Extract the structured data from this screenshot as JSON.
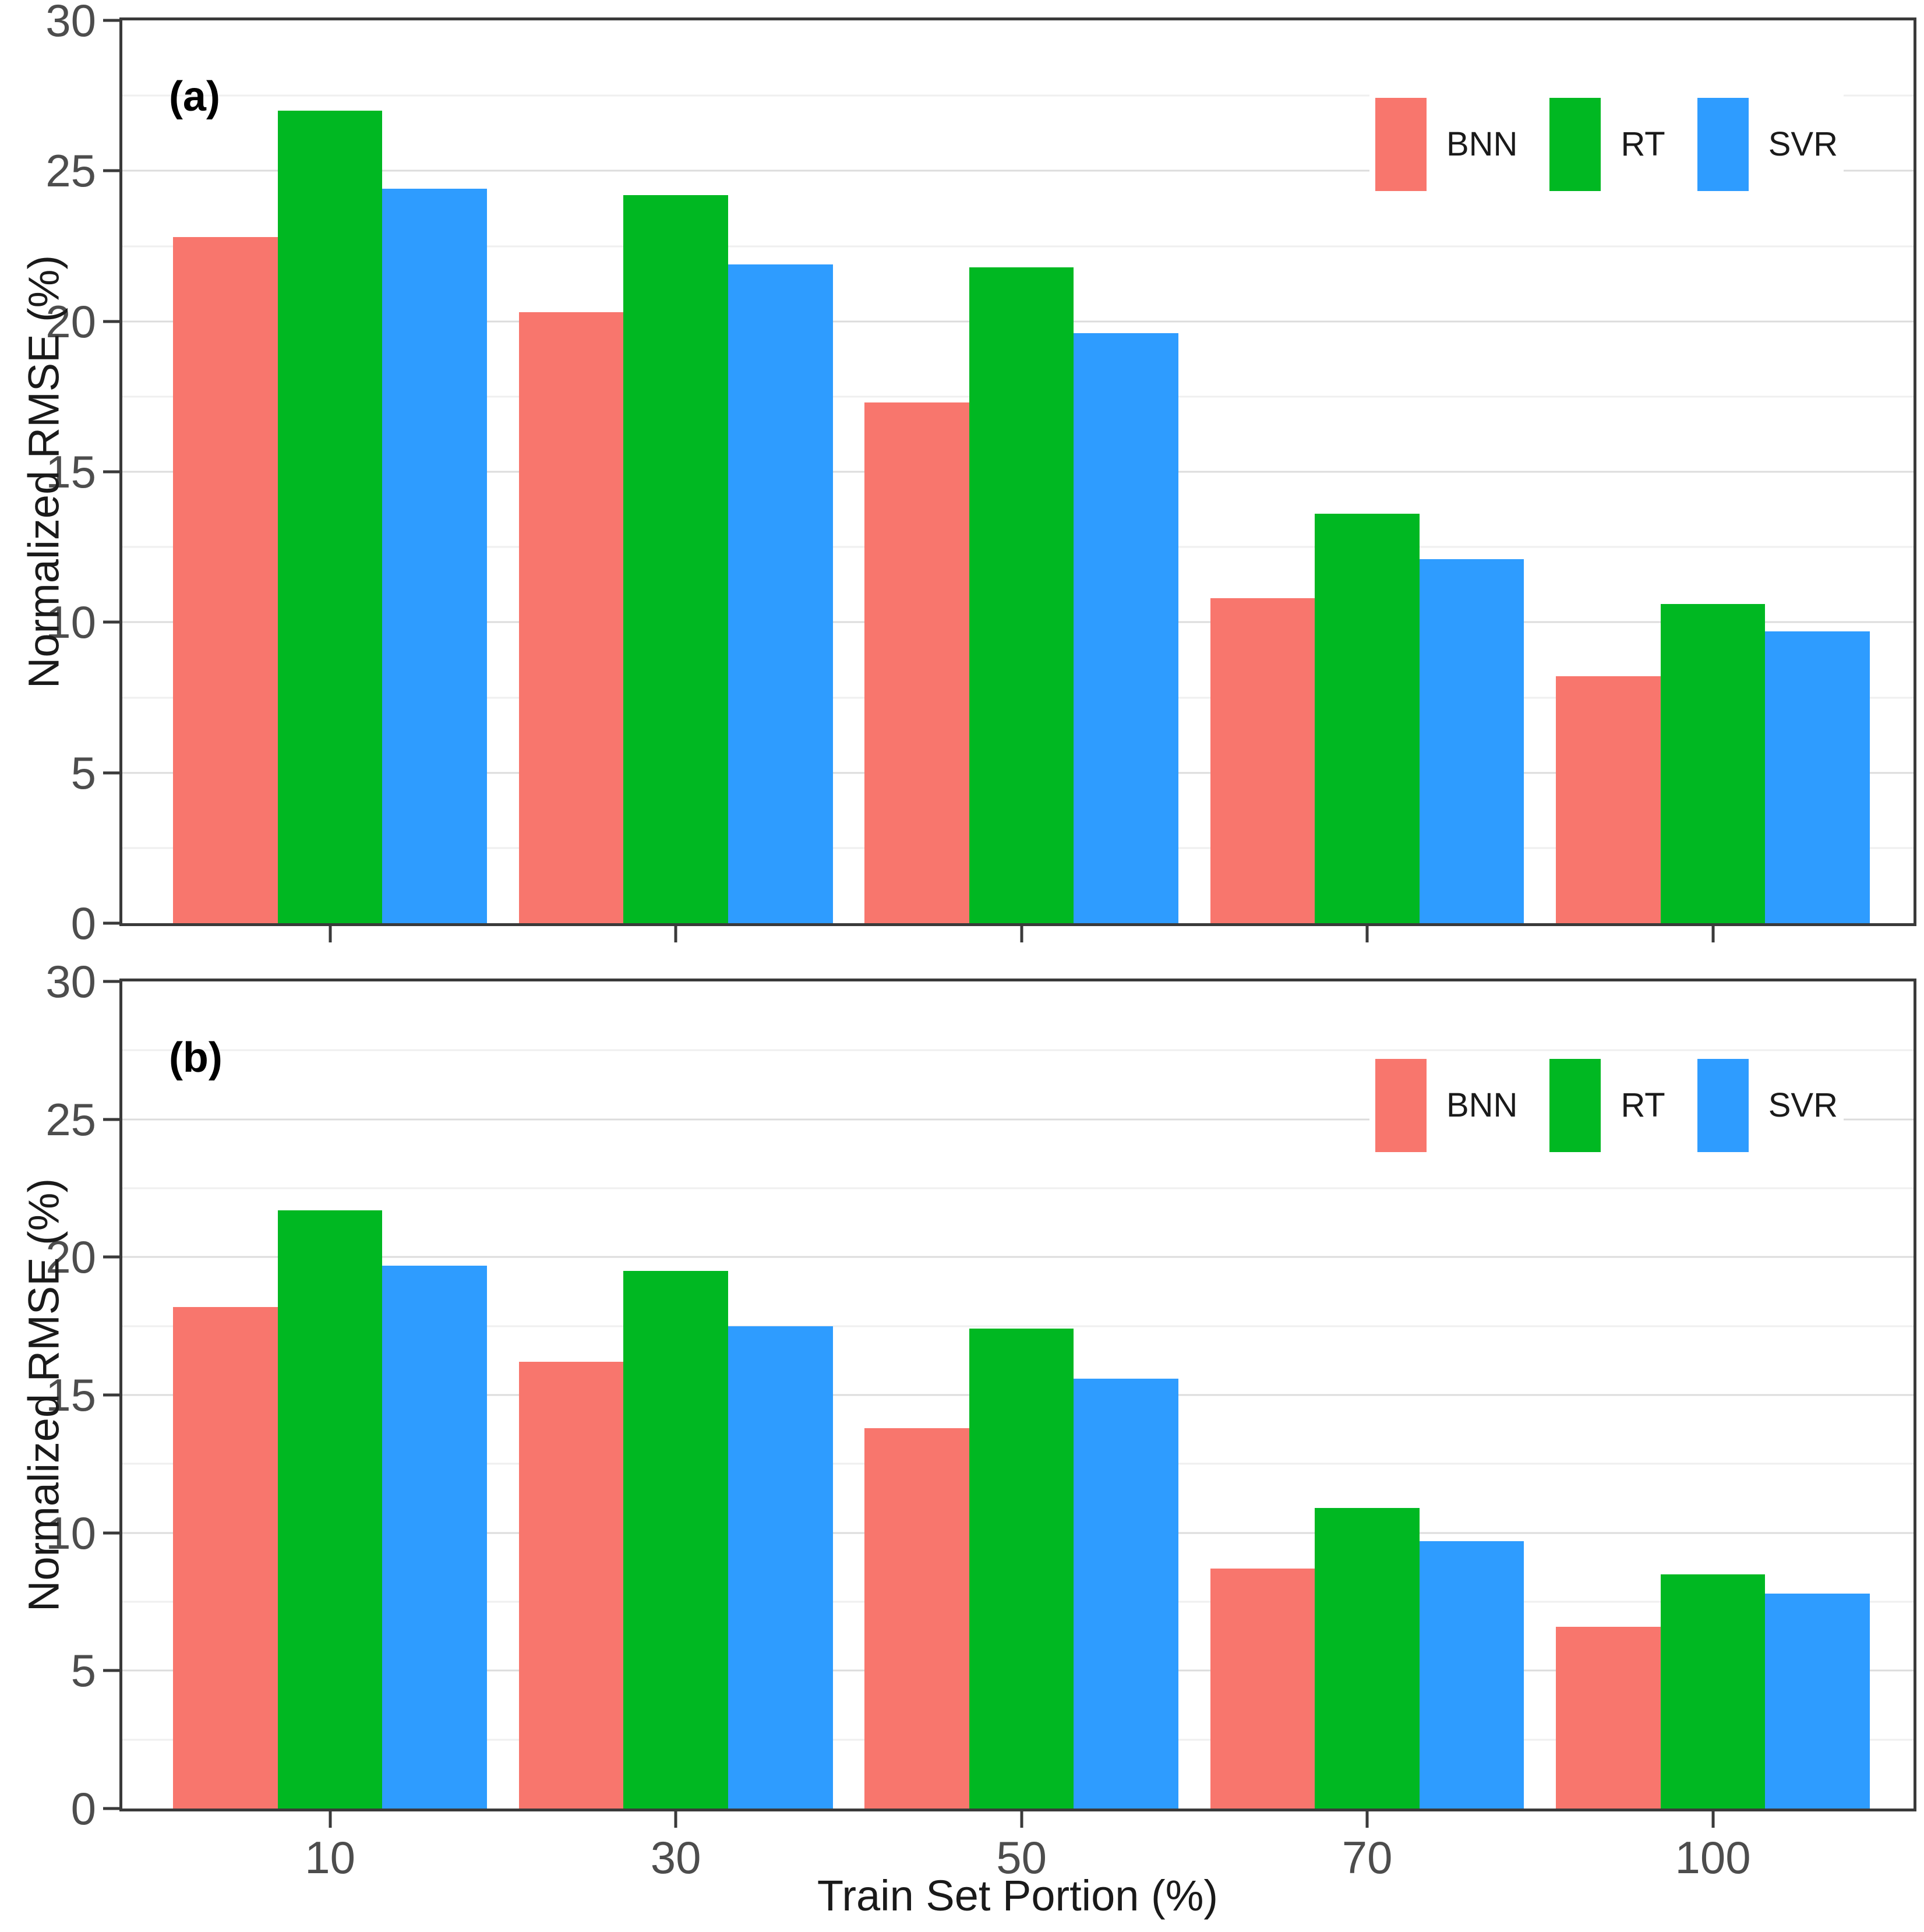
{
  "axes": {
    "x_title": "Train Set Portion (%)",
    "y_title": "Normalized RMSE (%)",
    "x_ticks": [
      "10",
      "30",
      "50",
      "70",
      "100"
    ],
    "y_ticks": [
      "0",
      "5",
      "10",
      "15",
      "20",
      "25",
      "30"
    ]
  },
  "legend": {
    "items": [
      {
        "label": "BNN",
        "color": "#F8766D"
      },
      {
        "label": "RT",
        "color": "#00B822"
      },
      {
        "label": "SVR",
        "color": "#2E9CFF"
      }
    ]
  },
  "colors": {
    "panel_border": "#3a3a3a",
    "grid_major": "#dcdcdc",
    "grid_minor": "#efefef",
    "tick_text": "#4d4d4d",
    "title_text": "#1a1a1a"
  },
  "chart_data": [
    {
      "type": "bar",
      "panel_label": "(a)",
      "categories": [
        "10",
        "30",
        "50",
        "70",
        "100"
      ],
      "series": [
        {
          "name": "BNN",
          "color": "#F8766D",
          "values": [
            22.8,
            20.3,
            17.3,
            10.8,
            8.2
          ]
        },
        {
          "name": "RT",
          "color": "#00B822",
          "values": [
            27.0,
            24.2,
            21.8,
            13.6,
            10.6
          ]
        },
        {
          "name": "SVR",
          "color": "#2E9CFF",
          "values": [
            24.4,
            21.9,
            19.6,
            12.1,
            9.7
          ]
        }
      ],
      "xlabel": "Train Set Portion (%)",
      "ylabel": "Normalized RMSE (%)",
      "ylim": [
        0,
        30
      ],
      "yticks": [
        0,
        5,
        10,
        15,
        20,
        25,
        30
      ],
      "grid": "major every 5, minor every 2.5",
      "legend_position": "top-right inside"
    },
    {
      "type": "bar",
      "panel_label": "(b)",
      "categories": [
        "10",
        "30",
        "50",
        "70",
        "100"
      ],
      "series": [
        {
          "name": "BNN",
          "color": "#F8766D",
          "values": [
            18.2,
            16.2,
            13.8,
            8.7,
            6.6
          ]
        },
        {
          "name": "RT",
          "color": "#00B822",
          "values": [
            21.7,
            19.5,
            17.4,
            10.9,
            8.5
          ]
        },
        {
          "name": "SVR",
          "color": "#2E9CFF",
          "values": [
            19.7,
            17.5,
            15.6,
            9.7,
            7.8
          ]
        }
      ],
      "xlabel": "Train Set Portion (%)",
      "ylabel": "Normalized RMSE (%)",
      "ylim": [
        0,
        30
      ],
      "yticks": [
        0,
        5,
        10,
        15,
        20,
        25,
        30
      ],
      "grid": "major every 5, minor every 2.5",
      "legend_position": "top-right inside"
    }
  ]
}
